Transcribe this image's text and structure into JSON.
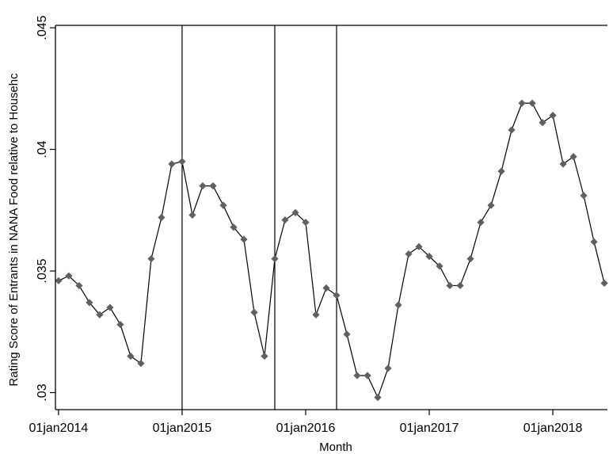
{
  "chart_data": {
    "type": "line",
    "title": "",
    "xlabel": "Month",
    "ylabel": "Rating Score of Entrants in NANA Food relative to Househc",
    "x_tick_labels": [
      "01jan2014",
      "01jan2015",
      "01jan2016",
      "01jan2017",
      "01jan2018"
    ],
    "x_tick_months": [
      0,
      12,
      24,
      36,
      48
    ],
    "y_ticks": [
      0.03,
      0.035,
      0.04,
      0.045
    ],
    "y_tick_labels": [
      ".03",
      ".035",
      ".04",
      ".045"
    ],
    "xlim_months": [
      -0.3,
      53.3
    ],
    "ylim": [
      0.0293,
      0.0451
    ],
    "reference_lines_months": [
      12,
      21,
      27
    ],
    "grid": false,
    "legend": "none",
    "colors": {
      "line": "#000000",
      "marker": "#606060",
      "axis": "#000000",
      "reference_line": "#000000"
    },
    "series": [
      {
        "x_months": [
          0,
          1,
          2,
          3,
          4,
          5,
          6,
          7,
          8,
          9,
          10,
          11,
          12,
          13,
          14,
          15,
          16,
          17,
          18,
          19,
          20,
          21,
          22,
          23,
          24,
          25,
          26,
          27,
          28,
          29,
          30,
          31,
          32,
          33,
          34,
          35,
          36,
          37,
          38,
          39,
          40,
          41,
          42,
          43,
          44,
          45,
          46,
          47,
          48,
          49,
          50,
          51,
          52,
          53
        ],
        "values": [
          0.0346,
          0.0348,
          0.0344,
          0.0337,
          0.0332,
          0.0335,
          0.0328,
          0.0315,
          0.0312,
          0.0355,
          0.0372,
          0.0394,
          0.0395,
          0.0373,
          0.0385,
          0.0385,
          0.0377,
          0.0368,
          0.0363,
          0.0333,
          0.0315,
          0.0355,
          0.0371,
          0.0374,
          0.037,
          0.0332,
          0.0343,
          0.034,
          0.0324,
          0.0307,
          0.0307,
          0.0298,
          0.031,
          0.0336,
          0.0357,
          0.036,
          0.0356,
          0.0352,
          0.0344,
          0.0344,
          0.0355,
          0.037,
          0.0377,
          0.0391,
          0.0408,
          0.0419,
          0.0419,
          0.0411,
          0.0414,
          0.0394,
          0.0397,
          0.0381,
          0.0362,
          0.0345
        ]
      }
    ]
  }
}
